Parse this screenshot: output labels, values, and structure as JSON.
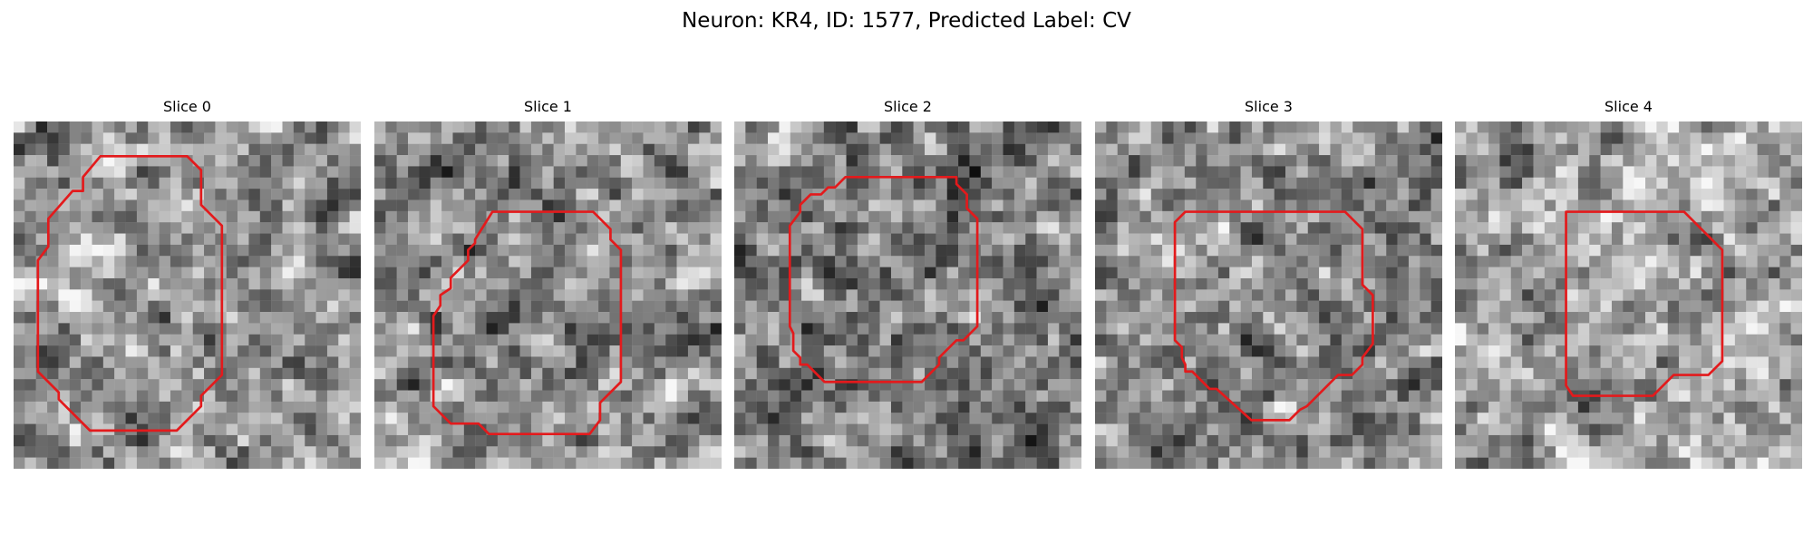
{
  "figure": {
    "title": "Neuron: KR4, ID: 1577, Predicted Label: CV",
    "outline_color": "#e31a1c",
    "colormap": "grayscale"
  },
  "panels": [
    {
      "title": "Slice 0",
      "image": "noisy grayscale microscopy patch with red neuron outline",
      "seed": 11,
      "mean": 0.56,
      "outline": [
        [
          25,
          10
        ],
        [
          50,
          10
        ],
        [
          54,
          14
        ],
        [
          54,
          24
        ],
        [
          60,
          30
        ],
        [
          60,
          73
        ],
        [
          54,
          79
        ],
        [
          54,
          82
        ],
        [
          47,
          89
        ],
        [
          22,
          89
        ],
        [
          13,
          80
        ],
        [
          13,
          78
        ],
        [
          7,
          72
        ],
        [
          7,
          40
        ],
        [
          10,
          36
        ],
        [
          10,
          28
        ],
        [
          17,
          20
        ],
        [
          20,
          20
        ],
        [
          20,
          16
        ]
      ]
    },
    {
      "title": "Slice 1",
      "image": "noisy grayscale microscopy patch with red neuron outline",
      "seed": 23,
      "mean": 0.55,
      "outline": [
        [
          34,
          26
        ],
        [
          63,
          26
        ],
        [
          68,
          31
        ],
        [
          68,
          34
        ],
        [
          71,
          37
        ],
        [
          71,
          75
        ],
        [
          65,
          81
        ],
        [
          65,
          86
        ],
        [
          62,
          90
        ],
        [
          33,
          90
        ],
        [
          30,
          87
        ],
        [
          22,
          87
        ],
        [
          17,
          82
        ],
        [
          17,
          56
        ],
        [
          19,
          53
        ],
        [
          19,
          50
        ],
        [
          22,
          48
        ],
        [
          22,
          45
        ],
        [
          27,
          40
        ],
        [
          27,
          37
        ],
        [
          29,
          35
        ],
        [
          29,
          34
        ]
      ]
    },
    {
      "title": "Slice 2",
      "image": "noisy grayscale microscopy patch with red neuron outline",
      "seed": 37,
      "mean": 0.48,
      "outline": [
        [
          32,
          16
        ],
        [
          64,
          16
        ],
        [
          64,
          18
        ],
        [
          67,
          21
        ],
        [
          67,
          25
        ],
        [
          70,
          28
        ],
        [
          70,
          59
        ],
        [
          66,
          63
        ],
        [
          64,
          63
        ],
        [
          59,
          68
        ],
        [
          59,
          70
        ],
        [
          54,
          75
        ],
        [
          26,
          75
        ],
        [
          21,
          70
        ],
        [
          19,
          70
        ],
        [
          19,
          68
        ],
        [
          17,
          66
        ],
        [
          17,
          61
        ],
        [
          16,
          59
        ],
        [
          16,
          30
        ],
        [
          19,
          26
        ],
        [
          19,
          24
        ],
        [
          22,
          21
        ],
        [
          25,
          21
        ],
        [
          27,
          19
        ],
        [
          29,
          19
        ]
      ]
    },
    {
      "title": "Slice 3",
      "image": "noisy grayscale microscopy patch with red neuron outline",
      "seed": 53,
      "mean": 0.52,
      "outline": [
        [
          26,
          26
        ],
        [
          29,
          26
        ],
        [
          72,
          26
        ],
        [
          77,
          31
        ],
        [
          77,
          47
        ],
        [
          80,
          50
        ],
        [
          80,
          64
        ],
        [
          77,
          68
        ],
        [
          77,
          70
        ],
        [
          74,
          73
        ],
        [
          70,
          73
        ],
        [
          61,
          82
        ],
        [
          59,
          83
        ],
        [
          56,
          86
        ],
        [
          45,
          86
        ],
        [
          35,
          77
        ],
        [
          33,
          77
        ],
        [
          28,
          72
        ],
        [
          26,
          72
        ],
        [
          26,
          70
        ],
        [
          25,
          68
        ],
        [
          25,
          65
        ],
        [
          23,
          63
        ],
        [
          23,
          29
        ]
      ]
    },
    {
      "title": "Slice 4",
      "image": "noisy grayscale microscopy patch with red neuron outline",
      "seed": 71,
      "mean": 0.62,
      "outline": [
        [
          32,
          26
        ],
        [
          66,
          26
        ],
        [
          77,
          37
        ],
        [
          77,
          69
        ],
        [
          73,
          73
        ],
        [
          63,
          73
        ],
        [
          57,
          79
        ],
        [
          34,
          79
        ],
        [
          32,
          76
        ]
      ]
    }
  ]
}
